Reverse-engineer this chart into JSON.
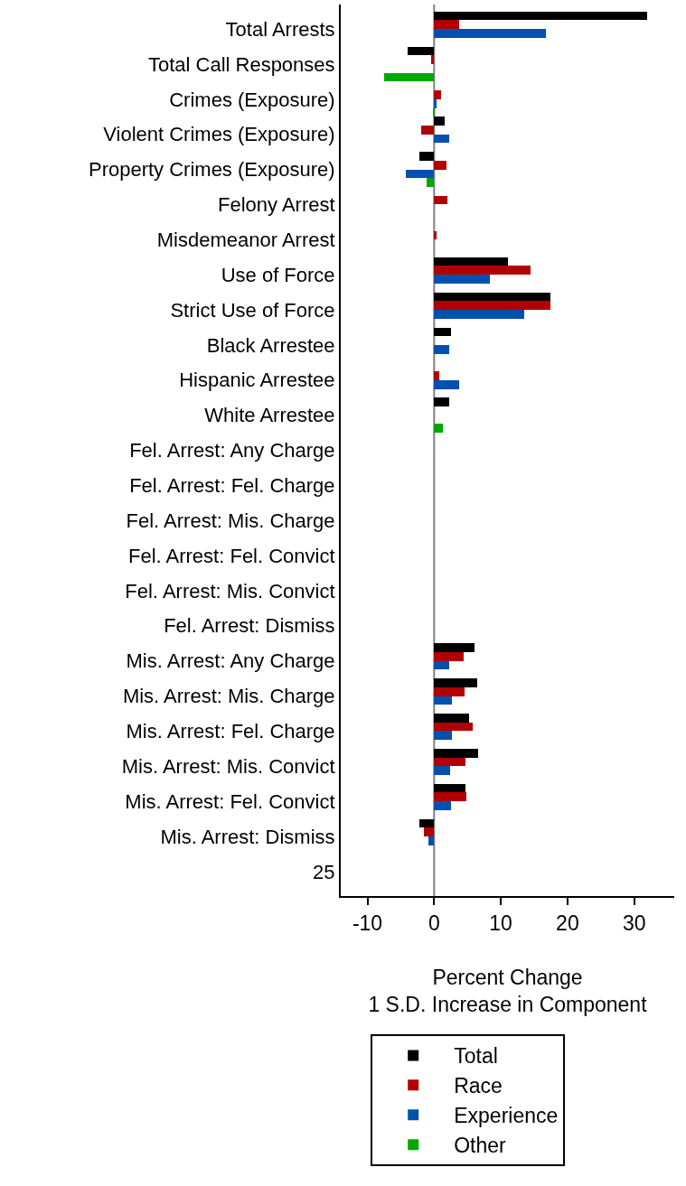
{
  "chart_data": {
    "type": "bar",
    "orientation": "horizontal",
    "xlabel": "Percent Change\n1 S.D. Increase in Component",
    "categories": [
      "Total Arrests",
      "Total Call Responses",
      "Crimes (Exposure)",
      "Violent Crimes (Exposure)",
      "Property Crimes (Exposure)",
      "Felony Arrest",
      "Misdemeanor Arrest",
      "Use of Force",
      "Strict Use of Force",
      "Black Arrestee",
      "Hispanic Arrestee",
      "White Arrestee",
      "Fel. Arrest: Any Charge",
      "Fel. Arrest: Fel. Charge",
      "Fel. Arrest: Mis. Charge",
      "Fel. Arrest: Fel. Convict",
      "Fel. Arrest: Mis. Convict",
      "Fel. Arrest: Dismiss",
      "Mis. Arrest: Any Charge",
      "Mis. Arrest: Mis. Charge",
      "Mis. Arrest: Fel. Charge",
      "Mis. Arrest: Mis. Convict",
      "Mis. Arrest: Fel. Convict",
      "Mis. Arrest: Dismiss",
      "25"
    ],
    "series": [
      {
        "name": "Total",
        "color": "#000000",
        "values": [
          32.0,
          -4.0,
          null,
          1.6,
          -2.2,
          null,
          null,
          11.1,
          17.5,
          2.5,
          null,
          2.2,
          null,
          null,
          null,
          null,
          null,
          null,
          6.0,
          6.5,
          5.3,
          6.6,
          4.7,
          -2.2,
          null
        ]
      },
      {
        "name": "Race",
        "color": "#b20000",
        "values": [
          3.8,
          -0.4,
          1.0,
          -1.9,
          1.8,
          2.0,
          0.4,
          14.4,
          17.5,
          null,
          0.8,
          null,
          null,
          null,
          null,
          null,
          null,
          null,
          4.4,
          4.6,
          5.8,
          4.7,
          4.9,
          -1.6,
          null
        ]
      },
      {
        "name": "Experience",
        "color": "#0050b0",
        "values": [
          16.8,
          null,
          0.3,
          2.2,
          -4.3,
          null,
          null,
          8.3,
          13.5,
          2.3,
          3.7,
          null,
          null,
          null,
          null,
          null,
          null,
          null,
          2.3,
          2.6,
          2.6,
          2.4,
          2.5,
          -0.8,
          null
        ]
      },
      {
        "name": "Other",
        "color": "#00a800",
        "values": [
          null,
          -7.5,
          -0.2,
          null,
          -1.1,
          null,
          null,
          null,
          null,
          null,
          null,
          1.3,
          null,
          null,
          null,
          null,
          null,
          null,
          null,
          null,
          null,
          null,
          null,
          null,
          null
        ]
      }
    ],
    "xlim": [
      -14,
      36
    ],
    "xticks": [
      -10,
      0,
      10,
      20,
      30
    ],
    "ref_lines": [
      {
        "axis": "x",
        "value": 0,
        "color": "#808080"
      }
    ],
    "grid": false,
    "legend": "bottom"
  }
}
